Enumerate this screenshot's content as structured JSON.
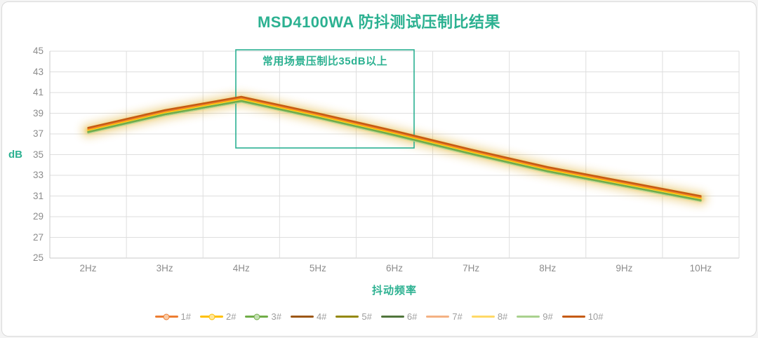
{
  "title": {
    "text": "MSD4100WA 防抖测试压制比结果"
  },
  "annotation": {
    "text": "常用场景压制比35dB以上"
  },
  "y_axis": {
    "title": "dB",
    "ticks": [
      "45",
      "43",
      "41",
      "39",
      "37",
      "35",
      "33",
      "31",
      "29",
      "27",
      "25"
    ]
  },
  "x_axis": {
    "title": "抖动频率",
    "ticks": [
      "2Hz",
      "3Hz",
      "4Hz",
      "5Hz",
      "6Hz",
      "7Hz",
      "8Hz",
      "9Hz",
      "10Hz"
    ]
  },
  "colors": {
    "accent_teal": "#2cb191",
    "tick_text": "#8c8c8c",
    "legend_text": "#9e9e9e",
    "gridline": "#dedede",
    "axis_line": "#c9c9c9",
    "glow_outer": "#dfae2e",
    "glow_inner": "#e9c33f",
    "annotation_border": "#2bb092"
  },
  "chart_data": {
    "type": "line",
    "title": "MSD4100WA 防抖测试压制比结果",
    "xlabel": "抖动频率",
    "ylabel": "dB",
    "categories": [
      "2Hz",
      "3Hz",
      "4Hz",
      "5Hz",
      "6Hz",
      "7Hz",
      "8Hz",
      "9Hz",
      "10Hz"
    ],
    "ylim": [
      25,
      45
    ],
    "y_tick_step": 2,
    "grid": true,
    "legend_position": "bottom",
    "annotation": {
      "text": "常用场景压制比35dB以上",
      "x_range": [
        "4Hz",
        "6Hz"
      ],
      "y_range": [
        35.5,
        45
      ]
    },
    "series": [
      {
        "name": "1#",
        "color": "#ED7D31",
        "marker": true,
        "marker_fill": "#F8CBA6",
        "values": [
          37.5,
          39.2,
          40.5,
          38.9,
          37.2,
          35.4,
          33.7,
          32.3,
          30.9
        ]
      },
      {
        "name": "2#",
        "color": "#FFC000",
        "marker": true,
        "marker_fill": "#FFE699",
        "values": [
          37.4,
          39.1,
          40.4,
          38.8,
          37.1,
          35.3,
          33.6,
          32.2,
          30.8
        ]
      },
      {
        "name": "3#",
        "color": "#70AD47",
        "marker": true,
        "marker_fill": "#C5E0B4",
        "values": [
          37.2,
          38.9,
          40.2,
          38.6,
          36.9,
          35.1,
          33.4,
          32.0,
          30.6
        ]
      },
      {
        "name": "4#",
        "color": "#9C5716",
        "marker": false,
        "marker_fill": "",
        "values": [
          37.3,
          39.0,
          40.3,
          38.7,
          37.0,
          35.2,
          33.5,
          32.1,
          30.7
        ]
      },
      {
        "name": "5#",
        "color": "#94880B",
        "marker": false,
        "marker_fill": "",
        "values": [
          37.3,
          38.9,
          40.3,
          38.7,
          36.9,
          35.2,
          33.5,
          32.0,
          30.7
        ]
      },
      {
        "name": "6#",
        "color": "#50753B",
        "marker": false,
        "marker_fill": "",
        "values": [
          37.2,
          38.9,
          40.2,
          38.6,
          36.9,
          35.1,
          33.4,
          32.0,
          30.6
        ]
      },
      {
        "name": "7#",
        "color": "#F4B183",
        "marker": false,
        "marker_fill": "",
        "values": [
          37.4,
          39.1,
          40.5,
          38.9,
          37.2,
          35.4,
          33.7,
          32.3,
          30.9
        ]
      },
      {
        "name": "8#",
        "color": "#FFD966",
        "marker": false,
        "marker_fill": "",
        "values": [
          37.3,
          39.0,
          40.3,
          38.7,
          37.0,
          35.2,
          33.5,
          32.1,
          30.7
        ]
      },
      {
        "name": "9#",
        "color": "#A9D18E",
        "marker": false,
        "marker_fill": "",
        "values": [
          37.1,
          38.8,
          40.1,
          38.5,
          36.8,
          35.0,
          33.3,
          31.9,
          30.5
        ]
      },
      {
        "name": "10#",
        "color": "#C55A11",
        "marker": false,
        "marker_fill": "",
        "values": [
          37.6,
          39.3,
          40.6,
          39.0,
          37.3,
          35.5,
          33.8,
          32.4,
          31.0
        ]
      }
    ]
  }
}
